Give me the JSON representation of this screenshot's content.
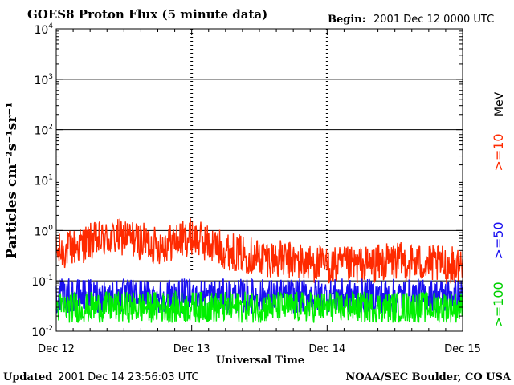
{
  "chart_data": {
    "type": "line",
    "title": "GOES8 Proton Flux (5 minute data)",
    "begin_label": "Begin:",
    "begin_value": "2001 Dec 12 0000 UTC",
    "xlabel": "Universal Time",
    "ylabel": "Particles cm⁻²s⁻¹sr⁻¹",
    "y_scale": "log",
    "ylim": [
      0.01,
      10000
    ],
    "x_range_days": [
      0,
      3
    ],
    "x_ticks": [
      {
        "day": 0,
        "label": "Dec 12"
      },
      {
        "day": 1,
        "label": "Dec 13"
      },
      {
        "day": 2,
        "label": "Dec 14"
      },
      {
        "day": 3,
        "label": "Dec 15"
      }
    ],
    "y_ticks": [
      {
        "value": 10000,
        "base": "10",
        "exp": "4"
      },
      {
        "value": 1000,
        "base": "10",
        "exp": "3"
      },
      {
        "value": 100,
        "base": "10",
        "exp": "2"
      },
      {
        "value": 10,
        "base": "10",
        "exp": "1"
      },
      {
        "value": 1,
        "base": "10",
        "exp": "0"
      },
      {
        "value": 0.1,
        "base": "10",
        "exp": "-1"
      },
      {
        "value": 0.01,
        "base": "10",
        "exp": "-2"
      }
    ],
    "reference_lines": [
      {
        "value": 1000,
        "style": "solid"
      },
      {
        "value": 100,
        "style": "solid"
      },
      {
        "value": 10,
        "style": "dashed"
      },
      {
        "value": 1,
        "style": "solid"
      },
      {
        "value": 0.1,
        "style": "solid"
      }
    ],
    "energy_unit": "MeV",
    "series": [
      {
        "name": ">=10",
        "color": "#ff2a00",
        "trend": [
          [
            0.0,
            0.35
          ],
          [
            0.25,
            0.6
          ],
          [
            0.5,
            0.75
          ],
          [
            0.75,
            0.5
          ],
          [
            1.0,
            0.75
          ],
          [
            1.25,
            0.4
          ],
          [
            1.5,
            0.3
          ],
          [
            1.75,
            0.25
          ],
          [
            2.0,
            0.2
          ],
          [
            2.25,
            0.2
          ],
          [
            2.5,
            0.25
          ],
          [
            2.75,
            0.22
          ],
          [
            3.0,
            0.2
          ]
        ]
      },
      {
        "name": ">=50",
        "color": "#1a10f0",
        "trend": [
          [
            0.0,
            0.05
          ],
          [
            1.0,
            0.05
          ],
          [
            2.0,
            0.05
          ],
          [
            3.0,
            0.05
          ]
        ]
      },
      {
        "name": ">=100",
        "color": "#00f000",
        "trend": [
          [
            0.0,
            0.03
          ],
          [
            1.0,
            0.03
          ],
          [
            2.0,
            0.03
          ],
          [
            3.0,
            0.03
          ]
        ]
      }
    ]
  },
  "footer": {
    "updated_label": "Updated",
    "updated_value": "2001 Dec 14 23:56:03 UTC",
    "source": "NOAA/SEC Boulder, CO USA"
  }
}
